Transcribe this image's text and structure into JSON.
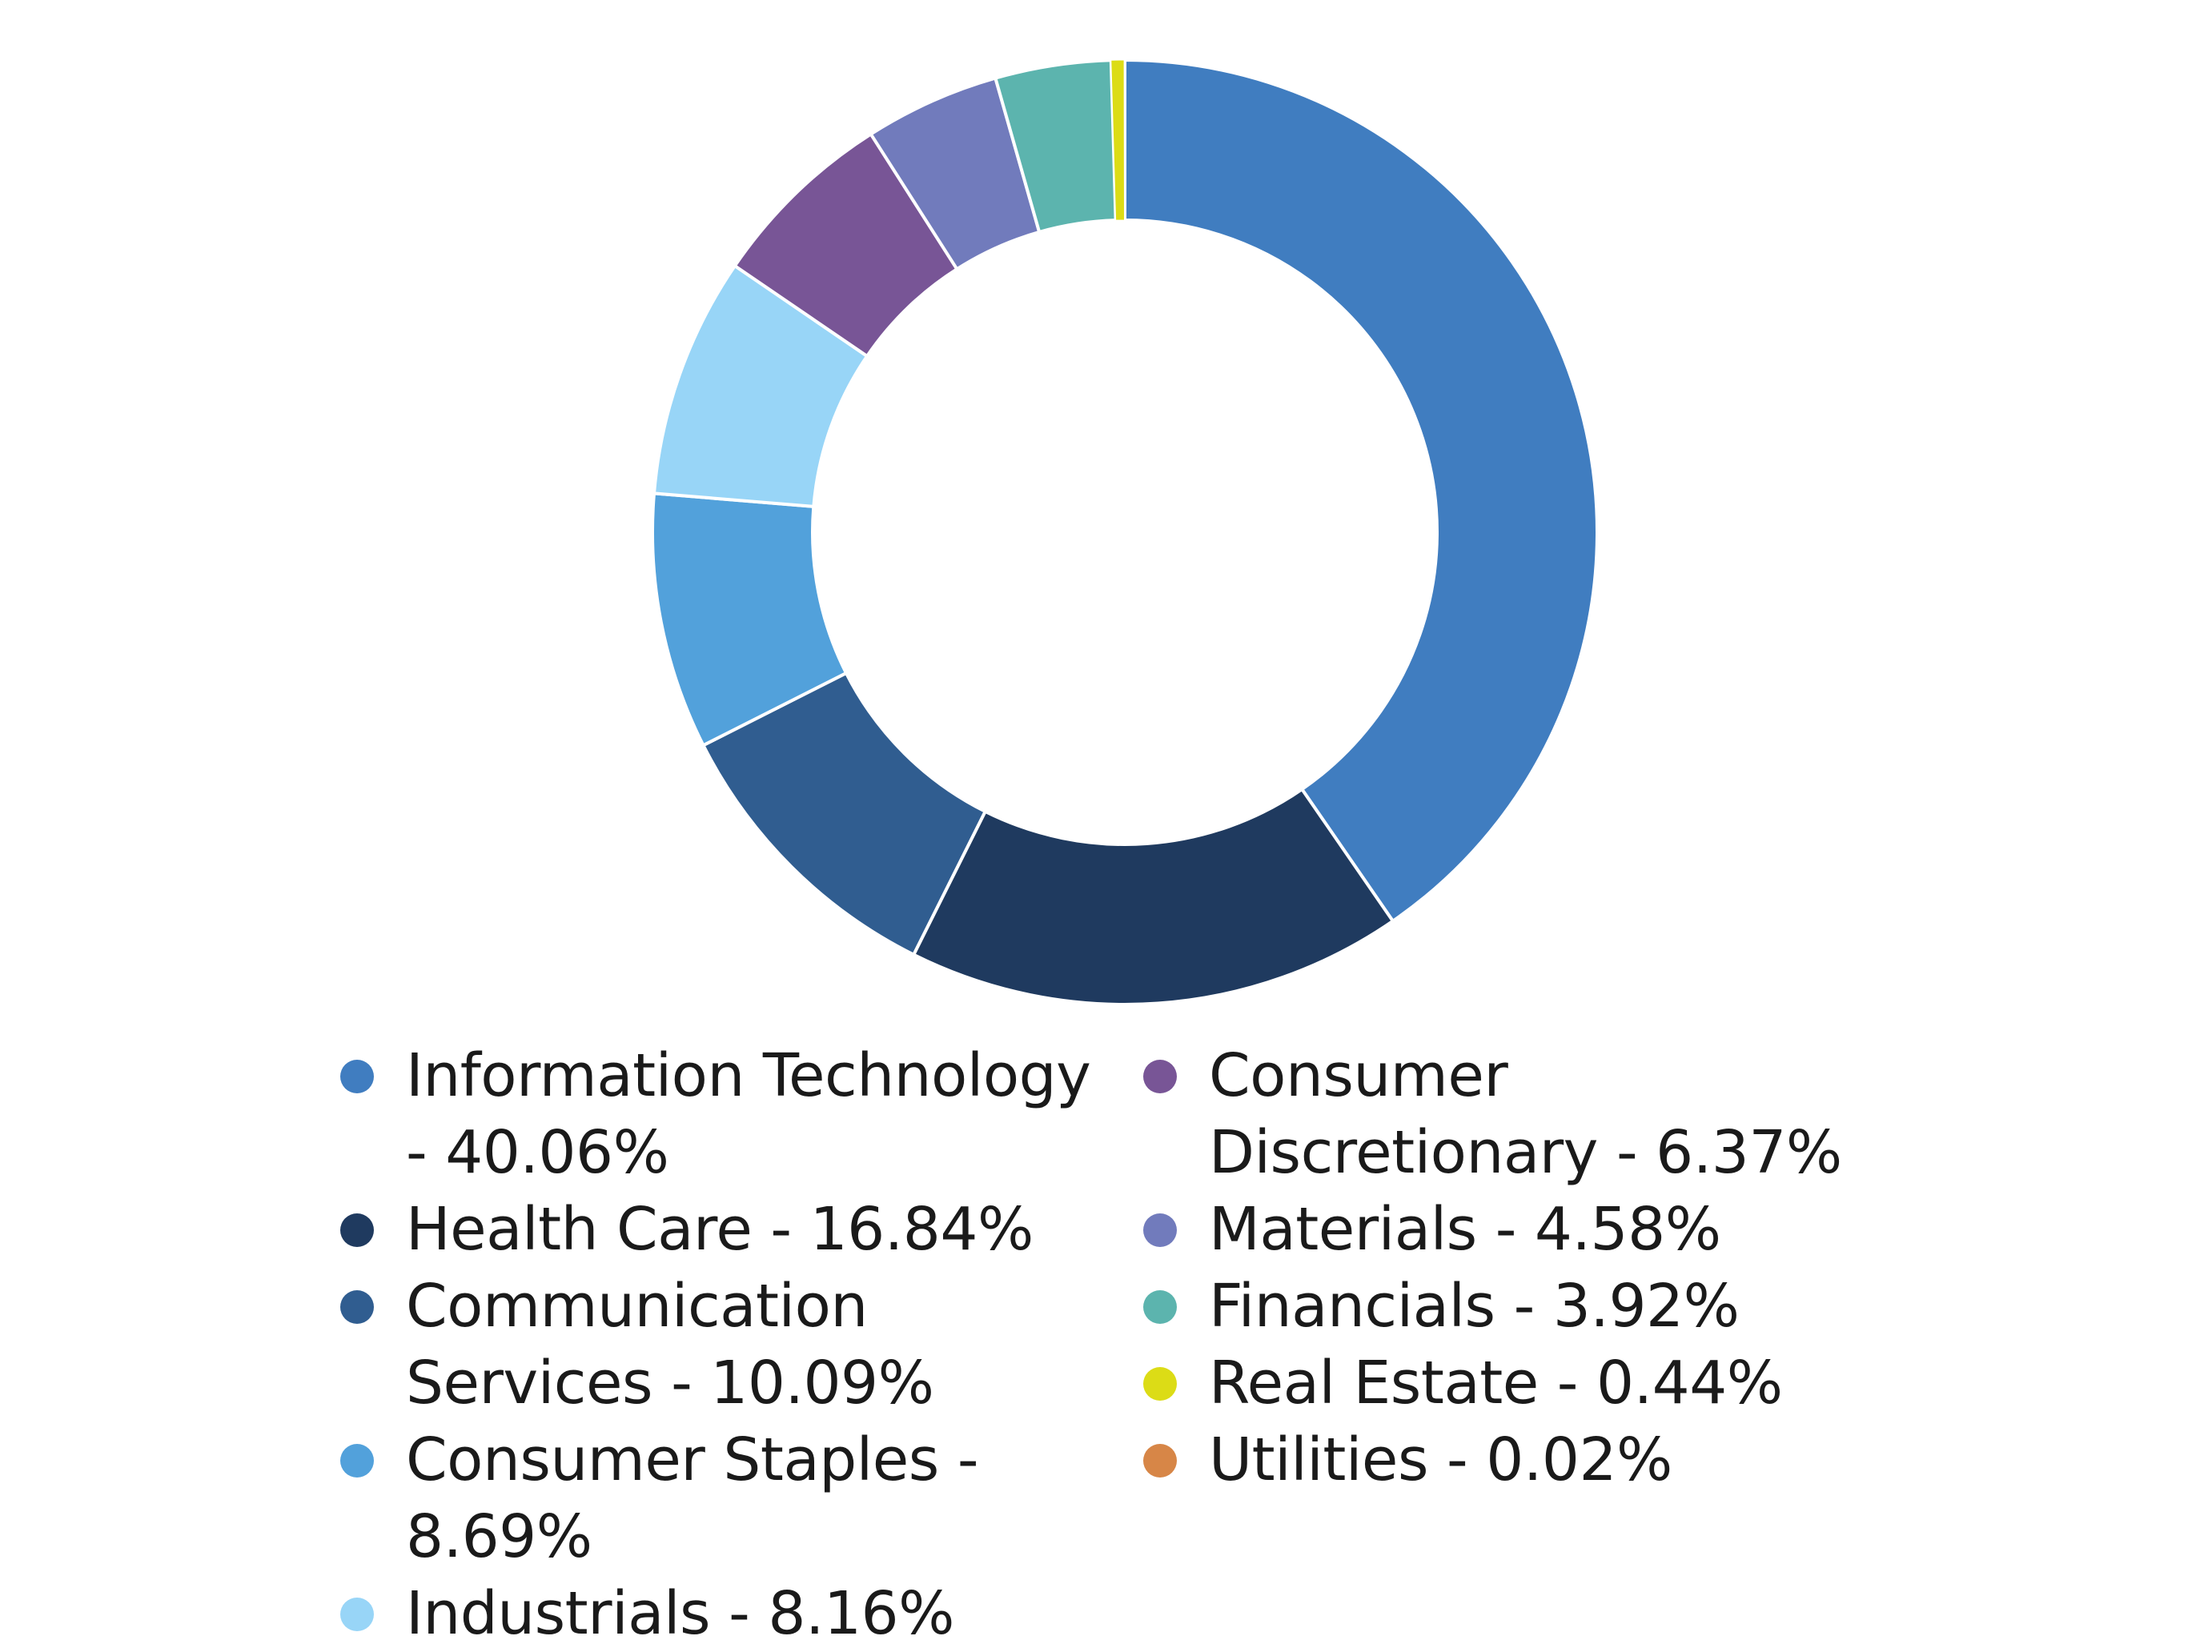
{
  "chart_data": {
    "type": "pie",
    "donut": true,
    "title": "",
    "legend_position": "bottom",
    "slices": [
      {
        "label": "Information Technology - 40.06%",
        "value": 40.06,
        "color": "#407DC0"
      },
      {
        "label": "Health Care - 16.84%",
        "value": 16.84,
        "color": "#1F3A5F"
      },
      {
        "label": "Communication Services - 10.09%",
        "value": 10.09,
        "color": "#305D90"
      },
      {
        "label": "Consumer Staples - 8.69%",
        "value": 8.69,
        "color": "#52A1DB"
      },
      {
        "label": "Industrials - 8.16%",
        "value": 8.16,
        "color": "#98D5F7"
      },
      {
        "label": "Consumer Discretionary - 6.37%",
        "value": 6.37,
        "color": "#785596"
      },
      {
        "label": "Materials - 4.58%",
        "value": 4.58,
        "color": "#717BBC"
      },
      {
        "label": "Financials - 3.92%",
        "value": 3.92,
        "color": "#5CB4AE"
      },
      {
        "label": "Real Estate - 0.44%",
        "value": 0.44,
        "color": "#DCDC16"
      },
      {
        "label": "Utilities - 0.02%",
        "value": 0.02,
        "color": "#D78647"
      }
    ],
    "legend": {
      "left": [
        {
          "text": "Information Technology - 40.06%",
          "color": "#407DC0"
        },
        {
          "text": "Health Care - 16.84%",
          "color": "#1F3A5F"
        },
        {
          "text": "Communication Services - 10.09%",
          "color": "#305D90"
        },
        {
          "text": "Consumer Staples - 8.69%",
          "color": "#52A1DB"
        },
        {
          "text": "Industrials - 8.16%",
          "color": "#98D5F7"
        }
      ],
      "right": [
        {
          "text": "Consumer Discretionary - 6.37%",
          "color": "#785596"
        },
        {
          "text": "Materials - 4.58%",
          "color": "#717BBC"
        },
        {
          "text": "Financials - 3.92%",
          "color": "#5CB4AE"
        },
        {
          "text": "Real Estate - 0.44%",
          "color": "#DCDC16"
        },
        {
          "text": "Utilities - 0.02%",
          "color": "#D78647"
        }
      ]
    }
  }
}
